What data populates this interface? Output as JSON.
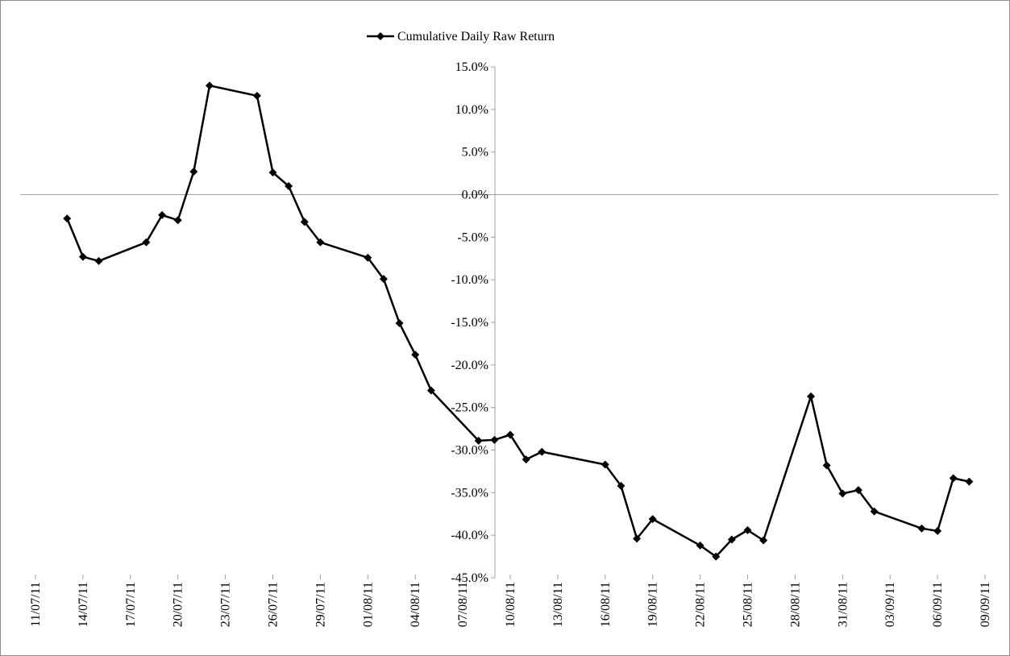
{
  "chart_data": {
    "type": "line",
    "title": "",
    "xlabel": "",
    "ylabel": "",
    "x_axis": {
      "type": "date",
      "range": [
        "2011-07-11",
        "2011-09-09"
      ],
      "tick_labels": [
        "11/07/11",
        "14/07/11",
        "17/07/11",
        "20/07/11",
        "23/07/11",
        "26/07/11",
        "29/07/11",
        "01/08/11",
        "04/08/11",
        "07/08/11",
        "10/08/11",
        "13/08/11",
        "16/08/11",
        "19/08/11",
        "22/08/11",
        "25/08/11",
        "28/08/11",
        "31/08/11",
        "03/09/11",
        "06/09/11",
        "09/09/11"
      ],
      "tick_dates": [
        "2011-07-11",
        "2011-07-14",
        "2011-07-17",
        "2011-07-20",
        "2011-07-23",
        "2011-07-26",
        "2011-07-29",
        "2011-08-01",
        "2011-08-04",
        "2011-08-07",
        "2011-08-10",
        "2011-08-13",
        "2011-08-16",
        "2011-08-19",
        "2011-08-22",
        "2011-08-25",
        "2011-08-28",
        "2011-08-31",
        "2011-09-03",
        "2011-09-06",
        "2011-09-09"
      ]
    },
    "y_axis": {
      "range": [
        -45,
        15
      ],
      "unit": "percent",
      "tick_values": [
        15,
        10,
        5,
        0,
        -5,
        -10,
        -15,
        -20,
        -25,
        -30,
        -35,
        -40,
        -45
      ],
      "tick_labels": [
        "15.0%",
        "10.0%",
        "5.0%",
        "0.0%",
        "-5.0%",
        "-10.0%",
        "-15.0%",
        "-20.0%",
        "-25.0%",
        "-30.0%",
        "-35.0%",
        "-40.0%",
        "-45.0%"
      ]
    },
    "grid": false,
    "zero_line": true,
    "legend": {
      "placement": "top-center"
    },
    "series": [
      {
        "name": "Cumulative Daily Raw Return",
        "color": "#000000",
        "marker": "diamond",
        "points": [
          {
            "x": "2011-07-13",
            "y": -2.8
          },
          {
            "x": "2011-07-14",
            "y": -7.3
          },
          {
            "x": "2011-07-15",
            "y": -7.8
          },
          {
            "x": "2011-07-18",
            "y": -5.6
          },
          {
            "x": "2011-07-19",
            "y": -2.4
          },
          {
            "x": "2011-07-20",
            "y": -3.0
          },
          {
            "x": "2011-07-21",
            "y": 2.7
          },
          {
            "x": "2011-07-22",
            "y": 12.8
          },
          {
            "x": "2011-07-25",
            "y": 11.6
          },
          {
            "x": "2011-07-26",
            "y": 2.6
          },
          {
            "x": "2011-07-27",
            "y": 1.0
          },
          {
            "x": "2011-07-28",
            "y": -3.2
          },
          {
            "x": "2011-07-29",
            "y": -5.6
          },
          {
            "x": "2011-08-01",
            "y": -7.4
          },
          {
            "x": "2011-08-02",
            "y": -9.9
          },
          {
            "x": "2011-08-03",
            "y": -15.1
          },
          {
            "x": "2011-08-04",
            "y": -18.8
          },
          {
            "x": "2011-08-05",
            "y": -23.0
          },
          {
            "x": "2011-08-08",
            "y": -28.9
          },
          {
            "x": "2011-08-09",
            "y": -28.8
          },
          {
            "x": "2011-08-10",
            "y": -28.2
          },
          {
            "x": "2011-08-11",
            "y": -31.1
          },
          {
            "x": "2011-08-12",
            "y": -30.2
          },
          {
            "x": "2011-08-16",
            "y": -31.7
          },
          {
            "x": "2011-08-17",
            "y": -34.2
          },
          {
            "x": "2011-08-18",
            "y": -40.4
          },
          {
            "x": "2011-08-19",
            "y": -38.1
          },
          {
            "x": "2011-08-22",
            "y": -41.2
          },
          {
            "x": "2011-08-23",
            "y": -42.5
          },
          {
            "x": "2011-08-24",
            "y": -40.5
          },
          {
            "x": "2011-08-25",
            "y": -39.4
          },
          {
            "x": "2011-08-26",
            "y": -40.6
          },
          {
            "x": "2011-08-29",
            "y": -23.7
          },
          {
            "x": "2011-08-30",
            "y": -31.8
          },
          {
            "x": "2011-08-31",
            "y": -35.1
          },
          {
            "x": "2011-09-01",
            "y": -34.7
          },
          {
            "x": "2011-09-02",
            "y": -37.2
          },
          {
            "x": "2011-09-05",
            "y": -39.2
          },
          {
            "x": "2011-09-06",
            "y": -39.5
          },
          {
            "x": "2011-09-07",
            "y": -33.3
          },
          {
            "x": "2011-09-08",
            "y": -33.7
          }
        ]
      }
    ]
  }
}
